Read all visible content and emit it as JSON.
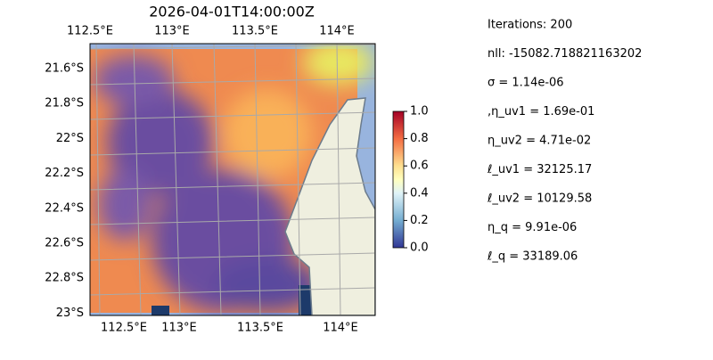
{
  "header": {
    "title": "2026-04-01T14:00:00Z"
  },
  "map": {
    "top_lon_labels": [
      "112.5°E",
      "113°E",
      "113.5°E",
      "114°E"
    ],
    "bottom_lon_labels": [
      "112.5°E",
      "113°E",
      "113.5°E",
      "114°E"
    ],
    "lat_labels": [
      "21.6°S",
      "21.8°S",
      "22°S",
      "22.2°S",
      "22.4°S",
      "22.6°S",
      "22.8°S",
      "23°S"
    ]
  },
  "colorbar": {
    "lim": [
      0,
      1
    ],
    "ticks": [
      {
        "value": 0,
        "label": "0.0"
      },
      {
        "value": 0.2,
        "label": "0.2"
      },
      {
        "value": 0.4,
        "label": "0.4"
      },
      {
        "value": 0.6,
        "label": "0.6"
      },
      {
        "value": 0.8,
        "label": "0.8"
      },
      {
        "value": 1,
        "label": "1.0"
      }
    ]
  },
  "stats": [
    "Iterations: 200",
    "nll: -15082.718821163202",
    "σ = 1.14e-06",
    ",η_uv1 = 1.69e-01",
    "η_uv2 = 4.71e-02",
    "ℓ_uv1 = 32125.17",
    "ℓ_uv2 = 10129.58",
    "η_q = 9.91e-06",
    "ℓ_q = 33189.06"
  ]
}
